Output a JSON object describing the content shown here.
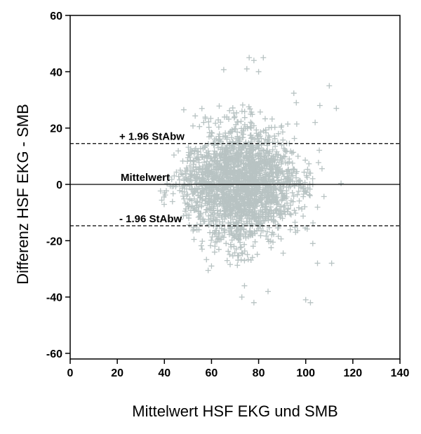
{
  "chart_data": {
    "type": "scatter",
    "title": "",
    "xlabel": "Mittelwert HSF EKG und SMB",
    "ylabel": "Differenz HSF EKG - SMB",
    "xlim": [
      0,
      140
    ],
    "ylim": [
      -62,
      60
    ],
    "xticks": [
      0,
      20,
      40,
      60,
      80,
      100,
      120,
      140
    ],
    "yticks": [
      60,
      40,
      20,
      0,
      -20,
      -40,
      -60
    ],
    "marker": "+",
    "point_color": "#b8c3c3",
    "grid": false,
    "reference_lines": [
      {
        "label": "+ 1.96 StAbw",
        "y": 14.5,
        "style": "dashed"
      },
      {
        "label": "Mittelwert",
        "y": 0,
        "style": "solid"
      },
      {
        "label": "- 1.96 StAbw",
        "y": -14.7,
        "style": "dashed"
      }
    ],
    "point_cloud": {
      "x_range": [
        38,
        118
      ],
      "x_center": 72,
      "y_center": 0,
      "y_max": 45,
      "y_min": -42,
      "point_count": 2200
    },
    "extreme_points": [
      {
        "x": 76,
        "y": 45
      },
      {
        "x": 78,
        "y": 44
      },
      {
        "x": 82,
        "y": 45
      },
      {
        "x": 80,
        "y": 40
      },
      {
        "x": 75,
        "y": 41
      },
      {
        "x": 110,
        "y": 35
      },
      {
        "x": 96,
        "y": 29
      },
      {
        "x": 106,
        "y": 28
      },
      {
        "x": 113,
        "y": 27
      },
      {
        "x": 104,
        "y": 22
      },
      {
        "x": 100,
        "y": -41
      },
      {
        "x": 102,
        "y": -42
      },
      {
        "x": 78,
        "y": -42
      },
      {
        "x": 84,
        "y": -38
      },
      {
        "x": 74,
        "y": -36
      },
      {
        "x": 105,
        "y": -28
      },
      {
        "x": 111,
        "y": -28
      },
      {
        "x": 103,
        "y": -21
      },
      {
        "x": 56,
        "y": -23
      },
      {
        "x": 60,
        "y": -29
      },
      {
        "x": 40,
        "y": -3
      }
    ]
  }
}
